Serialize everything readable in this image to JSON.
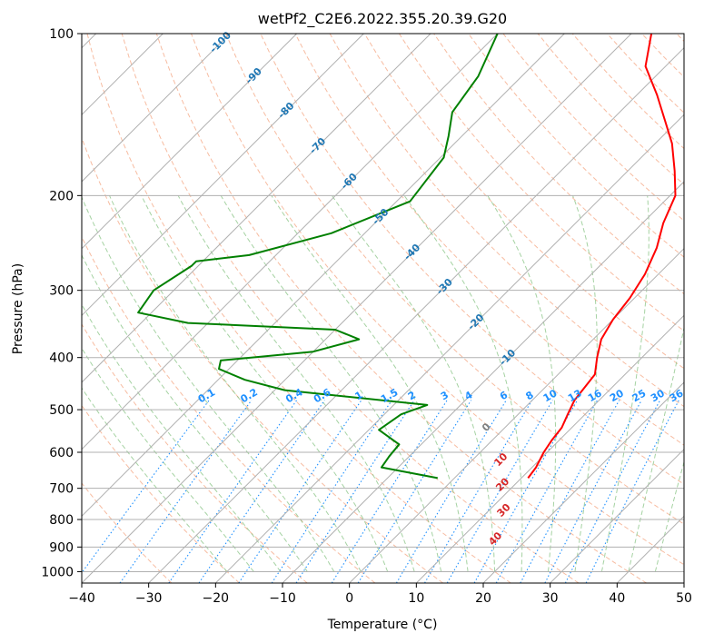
{
  "chart_data": {
    "type": "line",
    "title": "wetPf2_C2E6.2022.355.20.39.G20",
    "xlabel": "Temperature (°C)",
    "ylabel": "Pressure (hPa)",
    "xlim": [
      -40,
      50
    ],
    "ylim": [
      1050,
      100
    ],
    "y_scale": "log",
    "grid": true,
    "x_ticks": [
      -40,
      -30,
      -20,
      -10,
      0,
      10,
      20,
      30,
      40,
      50
    ],
    "y_ticks": [
      1000,
      900,
      800,
      700,
      600,
      500,
      400,
      300,
      200,
      100
    ],
    "skew": true,
    "series": [
      {
        "name": "",
        "color": "#ff0000",
        "points": [
          [
            11.0,
            670
          ],
          [
            10.6,
            640
          ],
          [
            9.5,
            600
          ],
          [
            8.9,
            570
          ],
          [
            8.5,
            540
          ],
          [
            7.4,
            510
          ],
          [
            6.3,
            480
          ],
          [
            6.0,
            460
          ],
          [
            5.5,
            430
          ],
          [
            3.3,
            400
          ],
          [
            1.2,
            370
          ],
          [
            0.0,
            340
          ],
          [
            -0.7,
            310
          ],
          [
            -2.0,
            280
          ],
          [
            -4.2,
            250
          ],
          [
            -6.9,
            225
          ],
          [
            -9.2,
            200
          ],
          [
            -13.0,
            180
          ],
          [
            -17.5,
            160
          ],
          [
            -22.0,
            145
          ],
          [
            -27.0,
            130
          ],
          [
            -33.0,
            115
          ],
          [
            -37.0,
            100
          ]
        ]
      },
      {
        "name": "",
        "color": "#008000",
        "points": [
          [
            -2.5,
            670
          ],
          [
            -12.5,
            640
          ],
          [
            -13.0,
            610
          ],
          [
            -13.3,
            580
          ],
          [
            -18.5,
            545
          ],
          [
            -17.5,
            510
          ],
          [
            -15.0,
            490
          ],
          [
            -38.5,
            460
          ],
          [
            -46.0,
            440
          ],
          [
            -51.5,
            420
          ],
          [
            -52.5,
            405
          ],
          [
            -40.0,
            390
          ],
          [
            -35.0,
            370
          ],
          [
            -40.0,
            355
          ],
          [
            -63.0,
            345
          ],
          [
            -72.0,
            330
          ],
          [
            -73.0,
            300
          ],
          [
            -71.0,
            270
          ],
          [
            -71.0,
            265
          ],
          [
            -64.0,
            258
          ],
          [
            -55.0,
            235
          ],
          [
            -48.0,
            205
          ],
          [
            -49.5,
            170
          ],
          [
            -52.0,
            155
          ],
          [
            -55.0,
            140
          ],
          [
            -56.5,
            120
          ],
          [
            -60.0,
            100
          ]
        ]
      }
    ],
    "isotherms": [
      -120,
      -110,
      -100,
      -90,
      -80,
      -70,
      -60,
      -50,
      -40,
      -30,
      -20,
      -10,
      0,
      10,
      20,
      30,
      40,
      50
    ],
    "isotherm_labels": [
      "-100",
      "-90",
      "-80",
      "-70",
      "-60",
      "-50",
      "-40",
      "-30",
      "-20",
      "-10"
    ],
    "mixing_ratios": [
      "0.1",
      "0.2",
      "0.4",
      "0.6",
      "1",
      "1.5",
      "2",
      "3",
      "4",
      "6",
      "8",
      "10",
      "13",
      "16",
      "20",
      "25",
      "30",
      "36"
    ],
    "moist_adiabat_labels": [
      "0",
      "10",
      "20",
      "30",
      "40"
    ],
    "colors": {
      "temperature": "#ff0000",
      "dewpoint": "#008000",
      "isotherm_label": "#1f77b4",
      "mixing_ratio": "#1e90ff",
      "moist_adiabat_label": "#d62728",
      "dry_adiabat": "#f4a582",
      "moist_adiabat": "#7fbf7b",
      "grid": "#b0b0b0"
    }
  }
}
